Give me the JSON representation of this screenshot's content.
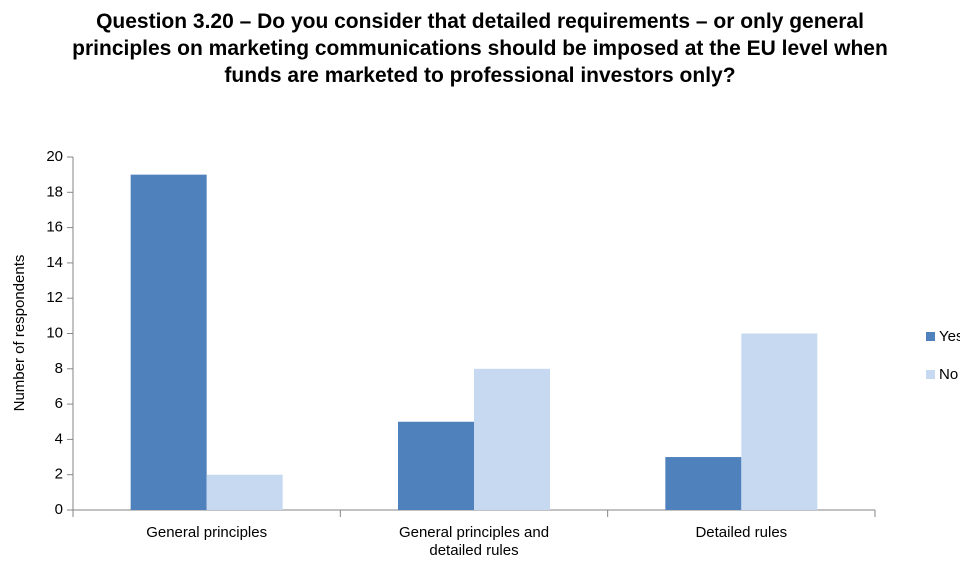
{
  "chart_data": {
    "type": "bar",
    "title": "Question 3.20 – Do you consider that detailed requirements – or only general principles on marketing communications should be imposed at the EU level when funds are marketed to professional investors only?",
    "y_label": "Number of respondents",
    "categories": [
      "General principles",
      "General principles and detailed rules",
      "Detailed rules"
    ],
    "series": [
      {
        "name": "Yes",
        "color": "#4f81bd",
        "values": [
          19,
          5,
          3
        ]
      },
      {
        "name": "No",
        "color": "#c6d9f1",
        "values": [
          2,
          8,
          10
        ]
      }
    ],
    "ylim": [
      0,
      20
    ],
    "yticks": [
      0,
      2,
      4,
      6,
      8,
      10,
      12,
      14,
      16,
      18,
      20
    ],
    "grid": false,
    "legend": "right"
  }
}
